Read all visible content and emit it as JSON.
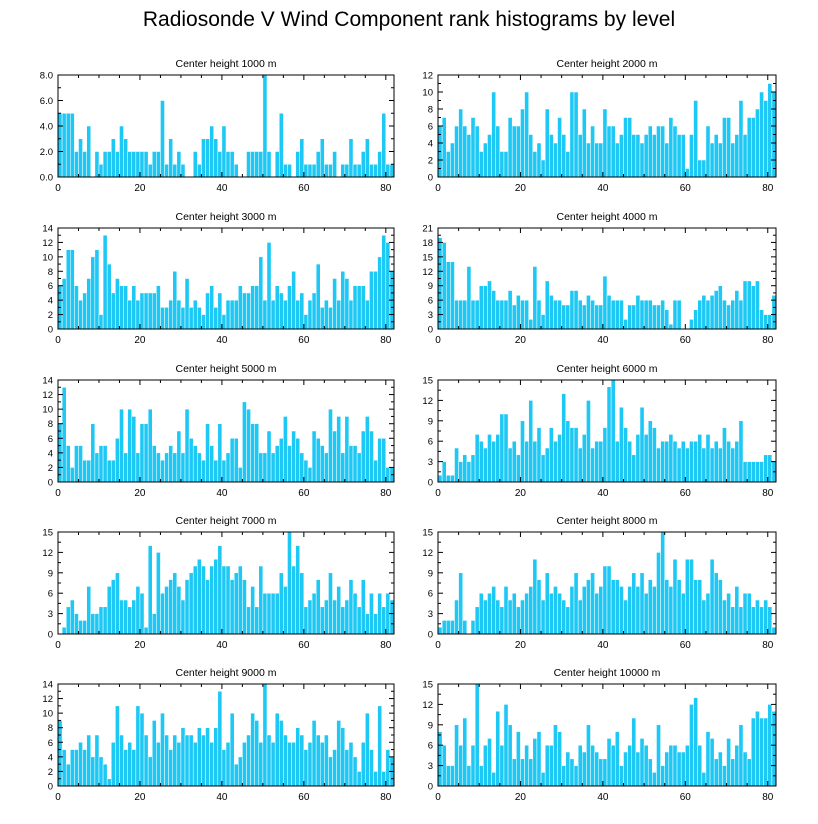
{
  "figure_title": "Radiosonde V Wind Component rank histograms by level",
  "colors": {
    "bar_fill": "#1ec8f5",
    "bar_stroke": "#ffffff",
    "axis": "#000000"
  },
  "chart_data": [
    {
      "type": "bar",
      "title": "Center height 1000 m",
      "xlabel": "",
      "ylabel": "",
      "xlim": [
        0,
        82
      ],
      "ylim": [
        0,
        8
      ],
      "xticks": [
        0,
        20,
        40,
        60,
        80
      ],
      "yticks": [
        0,
        2,
        4,
        6,
        8
      ],
      "ytick_labels": [
        "0.0",
        "2.0",
        "4.0",
        "6.0",
        "8.0"
      ],
      "values": [
        5,
        5,
        5,
        5,
        2,
        3,
        2,
        4,
        0,
        2,
        1,
        2,
        2,
        3,
        2,
        4,
        3,
        2,
        2,
        2,
        2,
        2,
        1,
        2,
        2,
        6,
        1,
        3,
        1,
        2,
        1,
        0,
        0,
        2,
        1,
        3,
        3,
        4,
        3,
        2,
        4,
        2,
        2,
        1,
        0,
        0,
        2,
        2,
        2,
        2,
        8,
        2,
        0,
        2,
        5,
        1,
        1,
        0,
        2,
        3,
        1,
        1,
        1,
        2,
        3,
        1,
        1,
        2,
        0,
        1,
        1,
        3,
        1,
        1,
        2,
        3,
        1,
        1,
        2,
        5,
        1,
        1
      ]
    },
    {
      "type": "bar",
      "title": "Center height 2000 m",
      "xlabel": "",
      "ylabel": "",
      "xlim": [
        0,
        82
      ],
      "ylim": [
        0,
        12
      ],
      "xticks": [
        0,
        20,
        40,
        60,
        80
      ],
      "yticks": [
        0,
        2,
        4,
        6,
        8,
        10,
        12
      ],
      "ytick_labels": [
        "0",
        "2",
        "4",
        "6",
        "8",
        "10",
        "12"
      ],
      "values": [
        6,
        7,
        3,
        4,
        6,
        8,
        6,
        5,
        7,
        6,
        3,
        4,
        5,
        10,
        6,
        3,
        3,
        7,
        6,
        6,
        8,
        10,
        5,
        3,
        4,
        2,
        8,
        5,
        4,
        7,
        5,
        3,
        10,
        10,
        5,
        8,
        4,
        6,
        4,
        4,
        8,
        6,
        6,
        4,
        5,
        7,
        7,
        5,
        5,
        4,
        5,
        6,
        5,
        6,
        6,
        4,
        7,
        6,
        5,
        5,
        1,
        5,
        9,
        2,
        2,
        6,
        4,
        5,
        4,
        7,
        7,
        4,
        5,
        9,
        5,
        7,
        7,
        8,
        10,
        9,
        11,
        10
      ]
    },
    {
      "type": "bar",
      "title": "Center height 3000 m",
      "xlabel": "",
      "ylabel": "",
      "xlim": [
        0,
        82
      ],
      "ylim": [
        0,
        14
      ],
      "xticks": [
        0,
        20,
        40,
        60,
        80
      ],
      "yticks": [
        0,
        2,
        4,
        6,
        8,
        10,
        12,
        14
      ],
      "ytick_labels": [
        "0",
        "2",
        "4",
        "6",
        "8",
        "10",
        "12",
        "14"
      ],
      "values": [
        6,
        7,
        11,
        11,
        6,
        4,
        5,
        7,
        10,
        11,
        2,
        13,
        9,
        5,
        7,
        6,
        6,
        4,
        6,
        4,
        5,
        5,
        5,
        5,
        6,
        3,
        3,
        4,
        8,
        4,
        3,
        7,
        3,
        4,
        3,
        2,
        5,
        6,
        3,
        5,
        2,
        4,
        4,
        4,
        6,
        5,
        5,
        6,
        6,
        10,
        4,
        12,
        4,
        6,
        5,
        4,
        6,
        8,
        4,
        5,
        2,
        4,
        5,
        9,
        3,
        4,
        3,
        7,
        4,
        8,
        7,
        4,
        6,
        6,
        6,
        4,
        8,
        8,
        10,
        13,
        12,
        8
      ]
    },
    {
      "type": "bar",
      "title": "Center height 4000 m",
      "xlabel": "",
      "ylabel": "",
      "xlim": [
        0,
        82
      ],
      "ylim": [
        0,
        21
      ],
      "xticks": [
        0,
        20,
        40,
        60,
        80
      ],
      "yticks": [
        0,
        3,
        6,
        9,
        12,
        15,
        18,
        21
      ],
      "ytick_labels": [
        "0",
        "3",
        "6",
        "9",
        "12",
        "15",
        "18",
        "21"
      ],
      "values": [
        19,
        18,
        14,
        14,
        6,
        6,
        6,
        13,
        6,
        6,
        9,
        9,
        10,
        8,
        6,
        6,
        6,
        8,
        5,
        7,
        6,
        6,
        2,
        13,
        6,
        3,
        10,
        7,
        6,
        6,
        5,
        5,
        8,
        8,
        6,
        5,
        7,
        6,
        5,
        5,
        11,
        7,
        6,
        6,
        6,
        2,
        5,
        5,
        7,
        6,
        6,
        6,
        5,
        5,
        6,
        4,
        1,
        6,
        6,
        0,
        0,
        2,
        4,
        6,
        7,
        6,
        7,
        8,
        9,
        6,
        5,
        6,
        8,
        6,
        10,
        10,
        9,
        10,
        4,
        3,
        3,
        7
      ]
    },
    {
      "type": "bar",
      "title": "Center height 5000 m",
      "xlabel": "",
      "ylabel": "",
      "xlim": [
        0,
        82
      ],
      "ylim": [
        0,
        14
      ],
      "xticks": [
        0,
        20,
        40,
        60,
        80
      ],
      "yticks": [
        0,
        2,
        4,
        6,
        8,
        10,
        12,
        14
      ],
      "ytick_labels": [
        "0",
        "2",
        "4",
        "6",
        "8",
        "10",
        "12",
        "14"
      ],
      "values": [
        8,
        13,
        5,
        2,
        5,
        5,
        3,
        3,
        8,
        4,
        5,
        5,
        3,
        3,
        6,
        10,
        4,
        10,
        9,
        4,
        8,
        8,
        10,
        5,
        4,
        3,
        4,
        5,
        4,
        7,
        4,
        10,
        6,
        5,
        4,
        3,
        8,
        5,
        3,
        8,
        3,
        4,
        6,
        6,
        2,
        11,
        10,
        8,
        8,
        4,
        4,
        7,
        4,
        5,
        6,
        9,
        5,
        7,
        6,
        4,
        3,
        2,
        7,
        6,
        5,
        4,
        10,
        7,
        9,
        4,
        9,
        5,
        5,
        4,
        7,
        9,
        7,
        3,
        6,
        6,
        2,
        2
      ]
    },
    {
      "type": "bar",
      "title": "Center height 6000 m",
      "xlabel": "",
      "ylabel": "",
      "xlim": [
        0,
        82
      ],
      "ylim": [
        0,
        15
      ],
      "xticks": [
        0,
        20,
        40,
        60,
        80
      ],
      "yticks": [
        0,
        3,
        6,
        9,
        12,
        15
      ],
      "ytick_labels": [
        "0",
        "3",
        "6",
        "9",
        "12",
        "15"
      ],
      "values": [
        1,
        3,
        1,
        1,
        5,
        3,
        4,
        3,
        4,
        7,
        6,
        5,
        7,
        6,
        7,
        10,
        10,
        5,
        6,
        4,
        9,
        6,
        12,
        6,
        8,
        4,
        5,
        8,
        6,
        7,
        13,
        9,
        8,
        8,
        5,
        7,
        12,
        5,
        6,
        6,
        8,
        14,
        15,
        6,
        11,
        8,
        6,
        4,
        7,
        11,
        7,
        9,
        8,
        5,
        6,
        6,
        7,
        6,
        5,
        6,
        5,
        6,
        6,
        7,
        5,
        7,
        5,
        6,
        5,
        8,
        6,
        5,
        6,
        9,
        3,
        3,
        3,
        3,
        3,
        4,
        4,
        3
      ]
    },
    {
      "type": "bar",
      "title": "Center height 7000 m",
      "xlabel": "",
      "ylabel": "",
      "xlim": [
        0,
        82
      ],
      "ylim": [
        0,
        15
      ],
      "xticks": [
        0,
        20,
        40,
        60,
        80
      ],
      "yticks": [
        0,
        3,
        6,
        9,
        12,
        15
      ],
      "ytick_labels": [
        "0",
        "3",
        "6",
        "9",
        "12",
        "15"
      ],
      "values": [
        0,
        1,
        4,
        5,
        3,
        2,
        2,
        7,
        3,
        3,
        4,
        4,
        7,
        8,
        9,
        5,
        5,
        4,
        5,
        7,
        6,
        1,
        13,
        3,
        12,
        6,
        7,
        8,
        9,
        7,
        5,
        8,
        9,
        10,
        11,
        10,
        8,
        10,
        11,
        13,
        10,
        10,
        8,
        9,
        10,
        8,
        4,
        7,
        4,
        10,
        6,
        6,
        6,
        6,
        9,
        7,
        15,
        10,
        13,
        9,
        4,
        5,
        6,
        8,
        4,
        5,
        9,
        5,
        7,
        4,
        5,
        8,
        6,
        4,
        8,
        3,
        6,
        3,
        6,
        4,
        6,
        5
      ]
    },
    {
      "type": "bar",
      "title": "Center height 8000 m",
      "xlabel": "",
      "ylabel": "",
      "xlim": [
        0,
        82
      ],
      "ylim": [
        0,
        15
      ],
      "xticks": [
        0,
        20,
        40,
        60,
        80
      ],
      "yticks": [
        0,
        3,
        6,
        9,
        12,
        15
      ],
      "ytick_labels": [
        "0",
        "3",
        "6",
        "9",
        "12",
        "15"
      ],
      "values": [
        1,
        2,
        2,
        2,
        5,
        9,
        2,
        0,
        2,
        4,
        6,
        5,
        6,
        7,
        5,
        4,
        7,
        5,
        6,
        4,
        5,
        6,
        7,
        11,
        8,
        5,
        9,
        6,
        7,
        6,
        5,
        4,
        7,
        9,
        5,
        7,
        8,
        9,
        6,
        7,
        10,
        10,
        8,
        8,
        7,
        5,
        7,
        9,
        7,
        9,
        6,
        8,
        7,
        12,
        15,
        8,
        7,
        11,
        8,
        6,
        11,
        11,
        8,
        8,
        5,
        6,
        11,
        9,
        8,
        5,
        6,
        4,
        7,
        4,
        6,
        6,
        4,
        5,
        4,
        5,
        4,
        1
      ]
    },
    {
      "type": "bar",
      "title": "Center height 9000 m",
      "xlabel": "",
      "ylabel": "",
      "xlim": [
        0,
        82
      ],
      "ylim": [
        0,
        14
      ],
      "xticks": [
        0,
        20,
        40,
        60,
        80
      ],
      "yticks": [
        0,
        2,
        4,
        6,
        8,
        10,
        12,
        14
      ],
      "ytick_labels": [
        "0",
        "2",
        "4",
        "6",
        "8",
        "10",
        "12",
        "14"
      ],
      "values": [
        9,
        5,
        3,
        5,
        5,
        6,
        5,
        7,
        4,
        7,
        4,
        3,
        1,
        6,
        11,
        7,
        5,
        6,
        5,
        11,
        10,
        7,
        4,
        9,
        6,
        10,
        7,
        5,
        7,
        6,
        8,
        7,
        7,
        6,
        8,
        7,
        8,
        6,
        8,
        13,
        5,
        6,
        10,
        3,
        4,
        6,
        7,
        10,
        9,
        6,
        14,
        7,
        6,
        10,
        9,
        7,
        6,
        6,
        8,
        7,
        5,
        6,
        9,
        7,
        6,
        7,
        4,
        5,
        9,
        8,
        5,
        6,
        4,
        2,
        6,
        10,
        5,
        2,
        11,
        2,
        5,
        4
      ]
    },
    {
      "type": "bar",
      "title": "Center height 10000 m",
      "xlabel": "",
      "ylabel": "",
      "xlim": [
        0,
        82
      ],
      "ylim": [
        0,
        15
      ],
      "xticks": [
        0,
        20,
        40,
        60,
        80
      ],
      "yticks": [
        0,
        3,
        6,
        9,
        12,
        15
      ],
      "ytick_labels": [
        "0",
        "3",
        "6",
        "9",
        "12",
        "15"
      ],
      "values": [
        8,
        6,
        3,
        3,
        9,
        6,
        10,
        3,
        6,
        15,
        3,
        6,
        7,
        2,
        11,
        6,
        12,
        9,
        4,
        8,
        4,
        6,
        4,
        7,
        8,
        2,
        6,
        6,
        9,
        8,
        3,
        5,
        4,
        3,
        6,
        5,
        9,
        6,
        5,
        4,
        4,
        7,
        6,
        8,
        3,
        5,
        6,
        10,
        5,
        7,
        6,
        4,
        2,
        9,
        3,
        5,
        6,
        6,
        5,
        5,
        6,
        12,
        13,
        6,
        2,
        8,
        7,
        4,
        5,
        3,
        7,
        4,
        6,
        9,
        5,
        4,
        10,
        11,
        10,
        10,
        12,
        11
      ]
    }
  ]
}
